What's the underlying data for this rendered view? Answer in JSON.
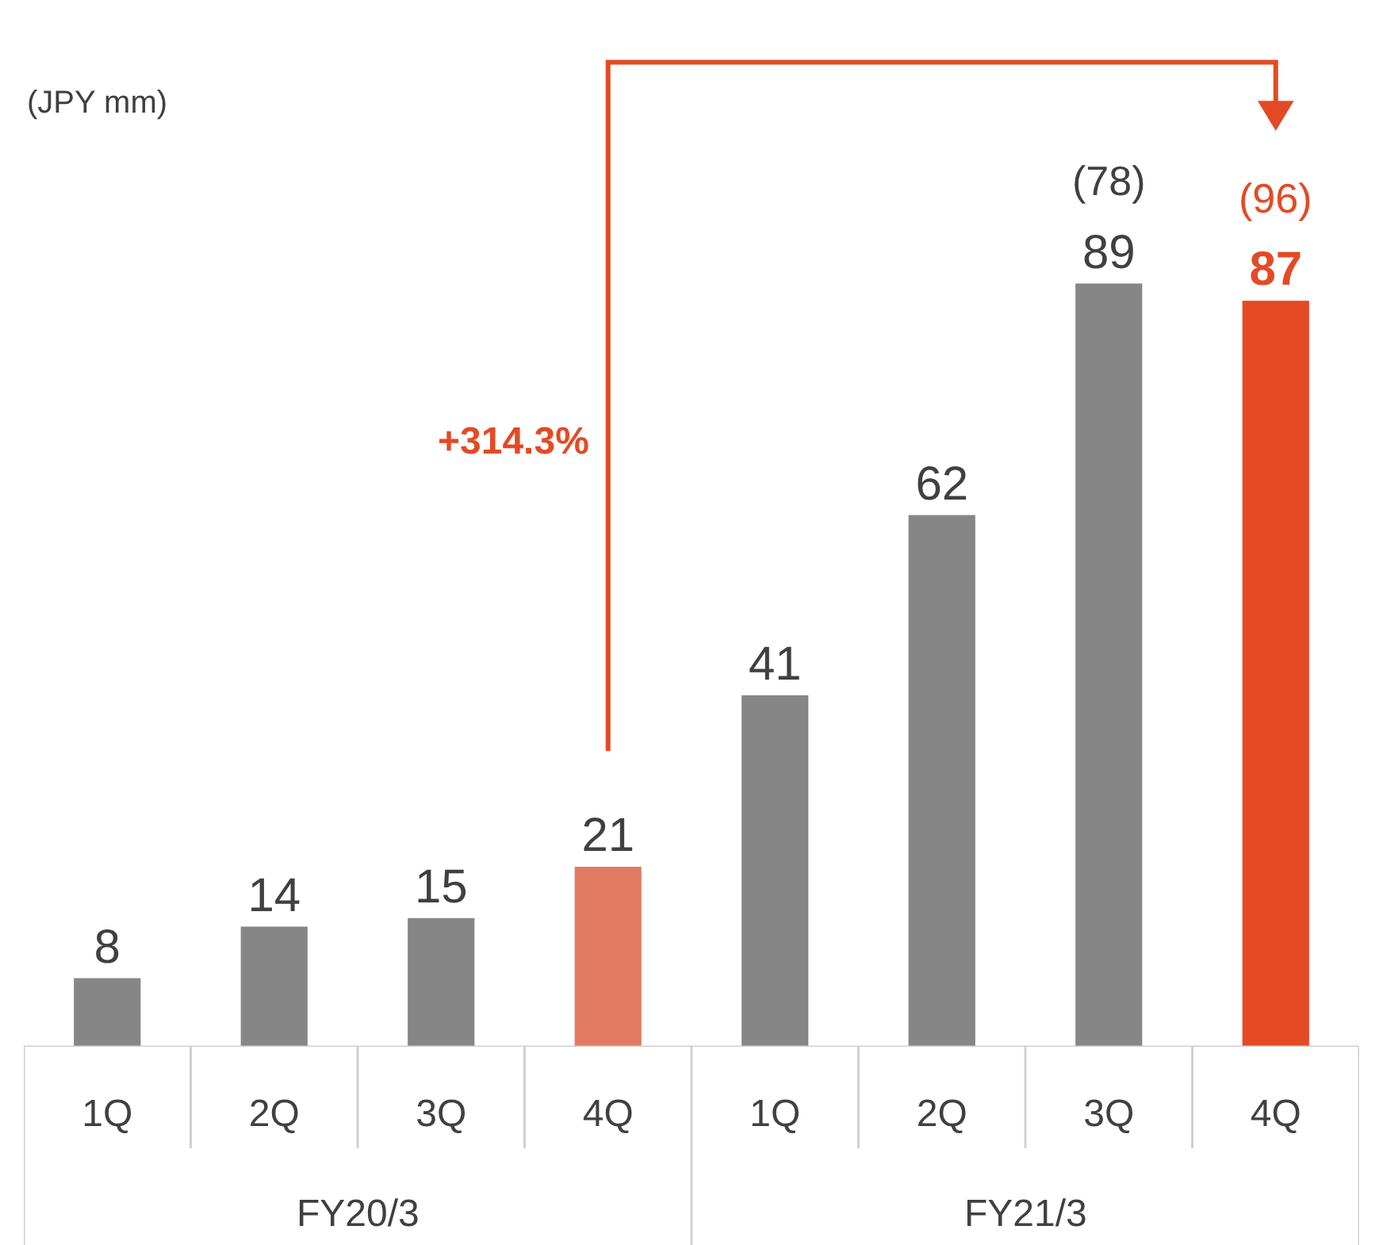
{
  "chart_data": {
    "type": "bar",
    "categories": [
      "1Q",
      "2Q",
      "3Q",
      "4Q",
      "1Q",
      "2Q",
      "3Q",
      "4Q"
    ],
    "values": [
      8,
      14,
      15,
      21,
      41,
      62,
      89,
      87
    ],
    "colors": [
      "#868686",
      "#868686",
      "#868686",
      "#e27a62",
      "#868686",
      "#868686",
      "#868686",
      "#e34a24"
    ],
    "data_labels": true,
    "annotations": [
      "(JPY mm)",
      "FY20/3",
      "FY21/3",
      "+314.3%",
      "(78)",
      "(96)"
    ]
  }
}
